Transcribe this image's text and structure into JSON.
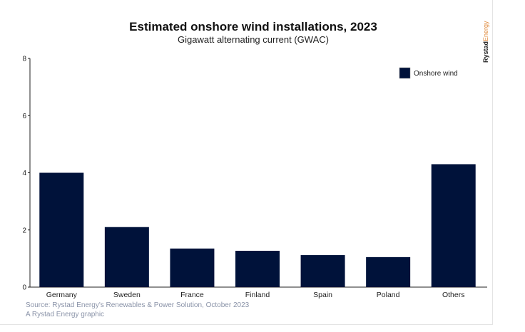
{
  "chart_data": {
    "type": "bar",
    "title": "Estimated onshore wind installations, 2023",
    "subtitle": "Gigawatt alternating current (GWAC)",
    "categories": [
      "Germany",
      "Sweden",
      "France",
      "Finland",
      "Spain",
      "Poland",
      "Others"
    ],
    "series": [
      {
        "name": "Onshore wind",
        "values": [
          4.0,
          2.1,
          1.35,
          1.27,
          1.12,
          1.05,
          4.3
        ],
        "color": "#00123a"
      }
    ],
    "yticks": [
      0,
      2,
      4,
      6,
      8
    ],
    "ylim": [
      0,
      8
    ],
    "xlabel": "",
    "ylabel": "",
    "grid": false,
    "legend_placement": "top-right"
  },
  "footer": {
    "source": "Source: Rystad Energy's Renewables & Power Solution, October 2023",
    "credit": "A Rystad Energy graphic"
  },
  "logo": {
    "part1": "Rystad",
    "part2": "Energy"
  }
}
